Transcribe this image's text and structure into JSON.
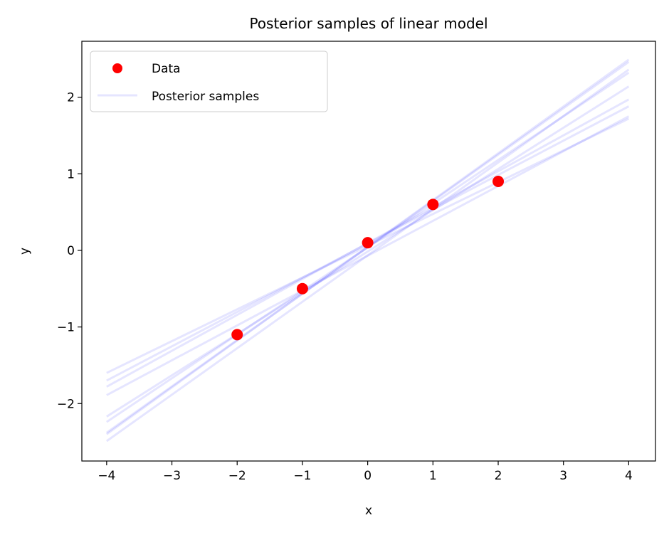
{
  "chart_data": {
    "type": "scatter",
    "title": "Posterior samples of linear model",
    "xlabel": "x",
    "ylabel": "y",
    "xlim": [
      -4.38,
      4.41
    ],
    "ylim": [
      -2.75,
      2.73
    ],
    "xticks": [
      -4,
      -3,
      -2,
      -1,
      0,
      1,
      2,
      3,
      4
    ],
    "xtick_labels": [
      "−4",
      "−3",
      "−2",
      "−1",
      "0",
      "1",
      "2",
      "3",
      "4"
    ],
    "yticks": [
      -2,
      -1,
      0,
      1,
      2
    ],
    "ytick_labels": [
      "−2",
      "−1",
      "0",
      "1",
      "2"
    ],
    "grid": false,
    "legend": {
      "placement": "top-left",
      "entries": [
        "Data",
        "Posterior samples"
      ]
    },
    "data": {
      "name": "Data",
      "color": "#ff0000",
      "x": [
        -2,
        -1,
        0,
        1,
        2
      ],
      "y": [
        -1.1,
        -0.5,
        0.1,
        0.6,
        0.9
      ]
    },
    "posterior_samples": {
      "name": "Posterior samples",
      "color": "#0000ff",
      "alpha": 0.1,
      "x_range": [
        -4,
        4
      ],
      "lines": [
        {
          "y_start": -1.6,
          "y_end": 1.72
        },
        {
          "y_start": -1.7,
          "y_end": 1.88
        },
        {
          "y_start": -1.78,
          "y_end": 1.97
        },
        {
          "y_start": -1.89,
          "y_end": 1.75
        },
        {
          "y_start": -2.17,
          "y_end": 2.14
        },
        {
          "y_start": -2.24,
          "y_end": 2.32
        },
        {
          "y_start": -2.38,
          "y_end": 2.46
        },
        {
          "y_start": -2.4,
          "y_end": 2.49
        },
        {
          "y_start": -2.49,
          "y_end": 2.36
        }
      ]
    }
  }
}
